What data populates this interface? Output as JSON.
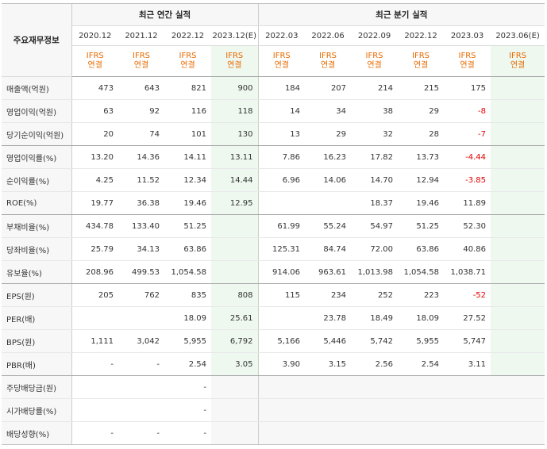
{
  "corner_label": "주요재무정보",
  "annual_header": "최근 연간 실적",
  "quarter_header": "최근 분기 실적",
  "annual_periods": [
    "2020.12",
    "2021.12",
    "2022.12",
    "2023.12(E)"
  ],
  "quarter_periods": [
    "2022.03",
    "2022.06",
    "2022.09",
    "2022.12",
    "2023.03",
    "2023.06(E)"
  ],
  "ifrs_top": "IFRS",
  "ifrs_bottom": "연결",
  "rows": [
    {
      "label": "매출액(억원)",
      "annual": [
        "473",
        "643",
        "821",
        "900"
      ],
      "quarter": [
        "184",
        "207",
        "214",
        "215",
        "175",
        ""
      ]
    },
    {
      "label": "영업이익(억원)",
      "annual": [
        "63",
        "92",
        "116",
        "118"
      ],
      "quarter": [
        "14",
        "34",
        "38",
        "29",
        "-8",
        ""
      ]
    },
    {
      "label": "당기순이익(억원)",
      "annual": [
        "20",
        "74",
        "101",
        "130"
      ],
      "quarter": [
        "13",
        "29",
        "32",
        "28",
        "-7",
        ""
      ]
    },
    {
      "label": "영업이익률(%)",
      "annual": [
        "13.20",
        "14.36",
        "14.11",
        "13.11"
      ],
      "quarter": [
        "7.86",
        "16.23",
        "17.82",
        "13.73",
        "-4.44",
        ""
      ]
    },
    {
      "label": "순이익률(%)",
      "annual": [
        "4.25",
        "11.52",
        "12.34",
        "14.44"
      ],
      "quarter": [
        "6.96",
        "14.06",
        "14.70",
        "12.94",
        "-3.85",
        ""
      ]
    },
    {
      "label": "ROE(%)",
      "annual": [
        "19.77",
        "36.38",
        "19.46",
        "12.95"
      ],
      "quarter": [
        "",
        "",
        "18.37",
        "19.46",
        "11.89",
        ""
      ]
    },
    {
      "label": "부채비율(%)",
      "annual": [
        "434.78",
        "133.40",
        "51.25",
        ""
      ],
      "quarter": [
        "61.99",
        "55.24",
        "54.97",
        "51.25",
        "52.30",
        ""
      ]
    },
    {
      "label": "당좌비율(%)",
      "annual": [
        "25.79",
        "34.13",
        "63.86",
        ""
      ],
      "quarter": [
        "125.31",
        "84.74",
        "72.00",
        "63.86",
        "40.86",
        ""
      ]
    },
    {
      "label": "유보율(%)",
      "annual": [
        "208.96",
        "499.53",
        "1,054.58",
        ""
      ],
      "quarter": [
        "914.06",
        "963.61",
        "1,013.98",
        "1,054.58",
        "1,038.71",
        ""
      ]
    },
    {
      "label": "EPS(원)",
      "annual": [
        "205",
        "762",
        "835",
        "808"
      ],
      "quarter": [
        "115",
        "234",
        "252",
        "223",
        "-52",
        ""
      ]
    },
    {
      "label": "PER(배)",
      "annual": [
        "",
        "",
        "18.09",
        "25.61"
      ],
      "quarter": [
        "",
        "23.78",
        "18.49",
        "18.09",
        "27.52",
        ""
      ]
    },
    {
      "label": "BPS(원)",
      "annual": [
        "1,111",
        "3,042",
        "5,955",
        "6,792"
      ],
      "quarter": [
        "5,166",
        "5,446",
        "5,742",
        "5,955",
        "5,747",
        ""
      ]
    },
    {
      "label": "PBR(배)",
      "annual": [
        "-",
        "-",
        "2.54",
        "3.05"
      ],
      "quarter": [
        "3.90",
        "3.15",
        "2.56",
        "2.54",
        "3.11",
        ""
      ]
    },
    {
      "label": "주당배당금(원)",
      "annual": [
        "",
        "",
        "-",
        ""
      ],
      "quarter": [
        "",
        "",
        "",
        "",
        "",
        ""
      ]
    },
    {
      "label": "시가배당률(%)",
      "annual": [
        "",
        "",
        "-",
        ""
      ],
      "quarter": [
        "",
        "",
        "",
        "",
        "",
        ""
      ]
    },
    {
      "label": "배당성향(%)",
      "annual": [
        "-",
        "-",
        "-",
        ""
      ],
      "quarter": [
        "",
        "",
        "",
        "",
        "",
        ""
      ]
    }
  ],
  "colors": {
    "negative": "#e60000",
    "ifrs": "#e86a00",
    "estimate_bg": "#eef8ef",
    "header_bg": "#f7f7f7"
  }
}
